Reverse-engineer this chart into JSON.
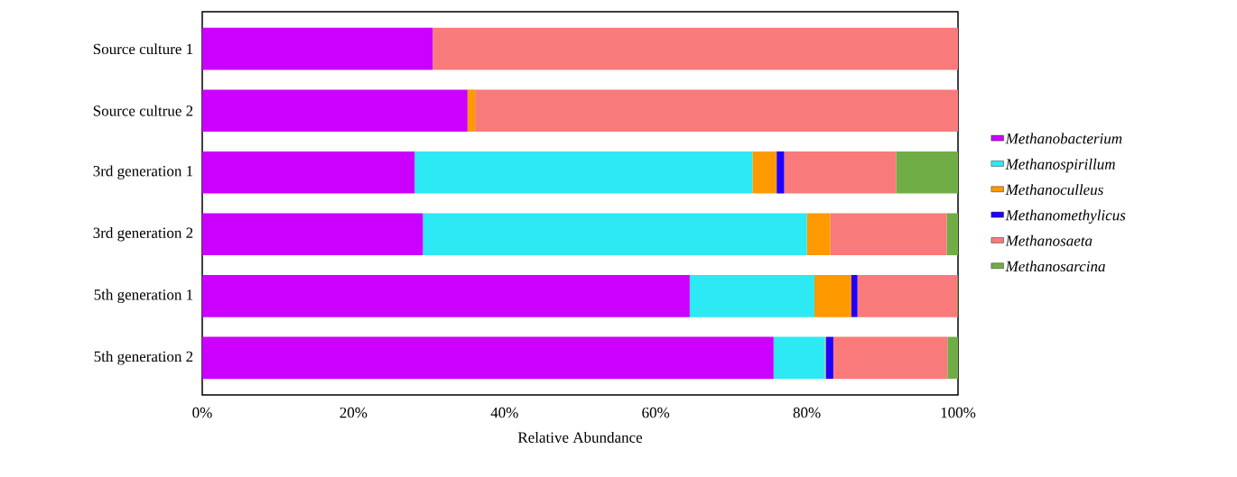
{
  "chart_data": {
    "type": "bar",
    "orientation": "horizontal",
    "stacked": true,
    "xlabel": "Relative Abundance",
    "categories": [
      "Source culture 1",
      "Source cultrue 2",
      "3rd generation 1",
      "3rd generation 2",
      "5th generation 1",
      "5th generation 2"
    ],
    "series": [
      {
        "name": "Methanobacterium",
        "color": "#cc00ff",
        "values": [
          30.5,
          35.1,
          28.1,
          29.2,
          64.5,
          75.6
        ]
      },
      {
        "name": "Methanospirillum",
        "color": "#2ce9f3",
        "values": [
          0,
          0,
          44.7,
          50.8,
          16.5,
          6.8
        ]
      },
      {
        "name": "Methanoculleus",
        "color": "#ff9900",
        "values": [
          0,
          1.0,
          3.2,
          3.1,
          4.9,
          0.1
        ]
      },
      {
        "name": "Methanomethylicus",
        "color": "#2200ff",
        "values": [
          0,
          0,
          1.0,
          0,
          0.8,
          1.0
        ]
      },
      {
        "name": "Methanosaeta",
        "color": "#f97a7a",
        "values": [
          69.5,
          63.9,
          14.8,
          15.4,
          13.2,
          15.1
        ]
      },
      {
        "name": "Methanosarcina",
        "color": "#70ad47",
        "values": [
          0,
          0,
          8.2,
          1.5,
          0.1,
          1.4
        ]
      }
    ],
    "xlim": [
      0,
      100
    ],
    "xticks": [
      {
        "value": 0,
        "label": "0%"
      },
      {
        "value": 20,
        "label": "20%"
      },
      {
        "value": 40,
        "label": "40%"
      },
      {
        "value": 60,
        "label": "60%"
      },
      {
        "value": 80,
        "label": "80%"
      },
      {
        "value": 100,
        "label": "100%"
      }
    ],
    "grid": false,
    "legend": "right"
  }
}
